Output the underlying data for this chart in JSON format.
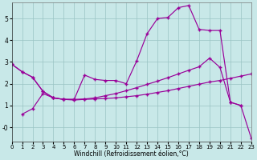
{
  "xlabel": "Windchill (Refroidissement éolien,°C)",
  "background_color": "#c8e8e8",
  "grid_color": "#99c4c4",
  "line_color": "#990099",
  "xlim": [
    0,
    23
  ],
  "ylim": [
    -0.65,
    5.75
  ],
  "xticks": [
    0,
    1,
    2,
    3,
    4,
    5,
    6,
    7,
    8,
    9,
    10,
    11,
    12,
    13,
    14,
    15,
    16,
    17,
    18,
    19,
    20,
    21,
    22,
    23
  ],
  "ytick_vals": [
    0,
    1,
    2,
    3,
    4,
    5
  ],
  "ytick_labels": [
    "-0",
    "1",
    "2",
    "3",
    "4",
    "5"
  ],
  "line1_x": [
    0,
    1,
    2,
    3,
    4,
    5,
    6,
    7,
    8,
    9,
    10,
    11,
    12,
    13,
    14,
    15,
    16,
    17,
    18,
    19,
    20,
    21,
    22
  ],
  "line1_y": [
    2.9,
    2.55,
    2.3,
    1.65,
    1.35,
    1.28,
    1.28,
    2.4,
    2.2,
    2.15,
    2.15,
    2.0,
    3.05,
    4.3,
    5.0,
    5.05,
    5.5,
    5.6,
    4.5,
    4.45,
    4.45,
    1.15,
    1.0
  ],
  "line2_x": [
    0,
    1,
    2,
    3,
    4,
    5,
    6,
    7,
    8,
    9,
    10,
    11,
    12,
    13,
    14,
    15,
    16,
    17,
    18,
    19,
    20,
    21,
    22,
    23
  ],
  "line2_y": [
    2.9,
    2.55,
    2.3,
    1.65,
    1.35,
    1.28,
    1.28,
    1.3,
    1.35,
    1.45,
    1.55,
    1.68,
    1.82,
    1.97,
    2.12,
    2.28,
    2.45,
    2.62,
    2.78,
    3.18,
    2.75,
    1.15,
    1.0,
    -0.5
  ],
  "line3_x": [
    1,
    2,
    3,
    4,
    5,
    6,
    7,
    8,
    9,
    10,
    11,
    12,
    13,
    14,
    15,
    16,
    17,
    18,
    19,
    20,
    21,
    22,
    23
  ],
  "line3_y": [
    0.6,
    0.85,
    1.55,
    1.35,
    1.28,
    1.25,
    1.28,
    1.3,
    1.32,
    1.35,
    1.4,
    1.45,
    1.52,
    1.6,
    1.68,
    1.78,
    1.88,
    1.98,
    2.08,
    2.15,
    2.25,
    2.35,
    2.45
  ]
}
